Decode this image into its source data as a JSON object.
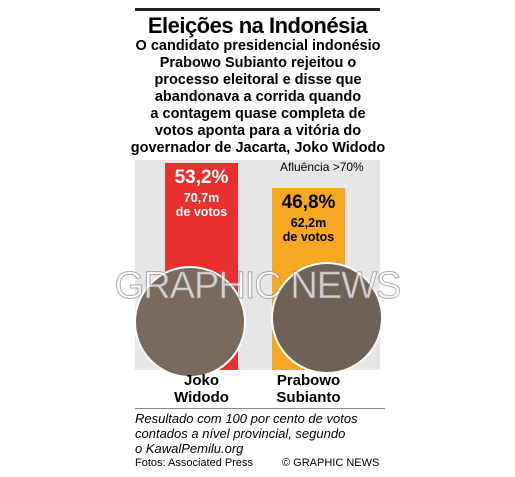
{
  "chart_data": {
    "type": "bar",
    "title": "Eleições na Indonésia",
    "subtitle": "O candidato presidencial indonésio\nPrabowo Subianto rejeitou o\nprocesso eleitoral e disse que\nabandonava a corrida quando\na contagem quase completa de\nvotos aponta para a vitória do\ngovernador de Jacarta, Joko Widodo",
    "categories": [
      "Joko\nWidodo",
      "Prabowo\nSubianto"
    ],
    "values": [
      53.2,
      46.8
    ],
    "value_labels": [
      "53,2%",
      "46,8%"
    ],
    "vote_labels": [
      "70,7m\nde votos",
      "62,2m\nde votos"
    ],
    "colors": [
      "#e8312f",
      "#f7a823"
    ],
    "annotation": "Afluência >70%",
    "watermark": "GRAPHIC NEWS",
    "footnote": "Resultado com 100 por cento de votos\ncontados a nível provincial, segundo\no KawalPemilu.org",
    "source": "Fotos: Associated Press",
    "credit": "© GRAPHIC NEWS"
  }
}
